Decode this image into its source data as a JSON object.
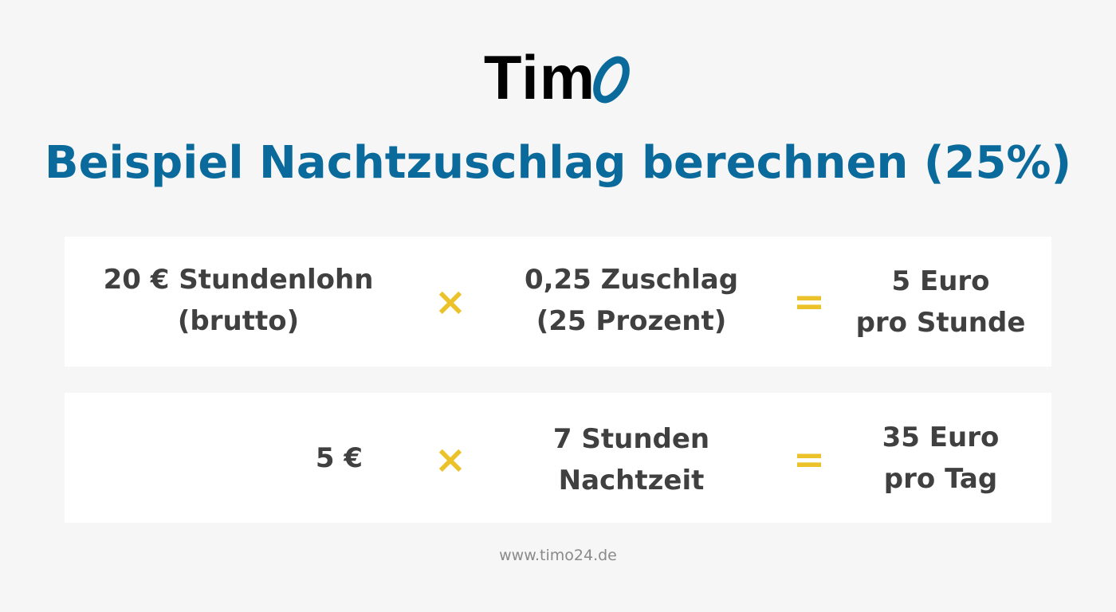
{
  "logo": {
    "text": "Tim",
    "accent_letter": "O",
    "accent_color": "#0b6a9c"
  },
  "title": "Beispiel Nachtzuschlag berechnen (25%)",
  "rows": [
    {
      "left": [
        "20 € Stundenlohn",
        "(brutto)"
      ],
      "operator1": "×",
      "middle": [
        "0,25 Zuschlag",
        "(25 Prozent)"
      ],
      "operator2": "=",
      "right": [
        "5 Euro",
        "pro Stunde"
      ]
    },
    {
      "left": [
        "5 €"
      ],
      "operator1": "×",
      "middle": [
        "7 Stunden",
        "Nachtzeit"
      ],
      "operator2": "=",
      "right": [
        "35 Euro",
        "pro Tag"
      ]
    }
  ],
  "colors": {
    "background": "#f6f6f6",
    "title": "#0b6a9c",
    "text": "#404040",
    "operator": "#ecc22b"
  },
  "footer": "www.timo24.de"
}
